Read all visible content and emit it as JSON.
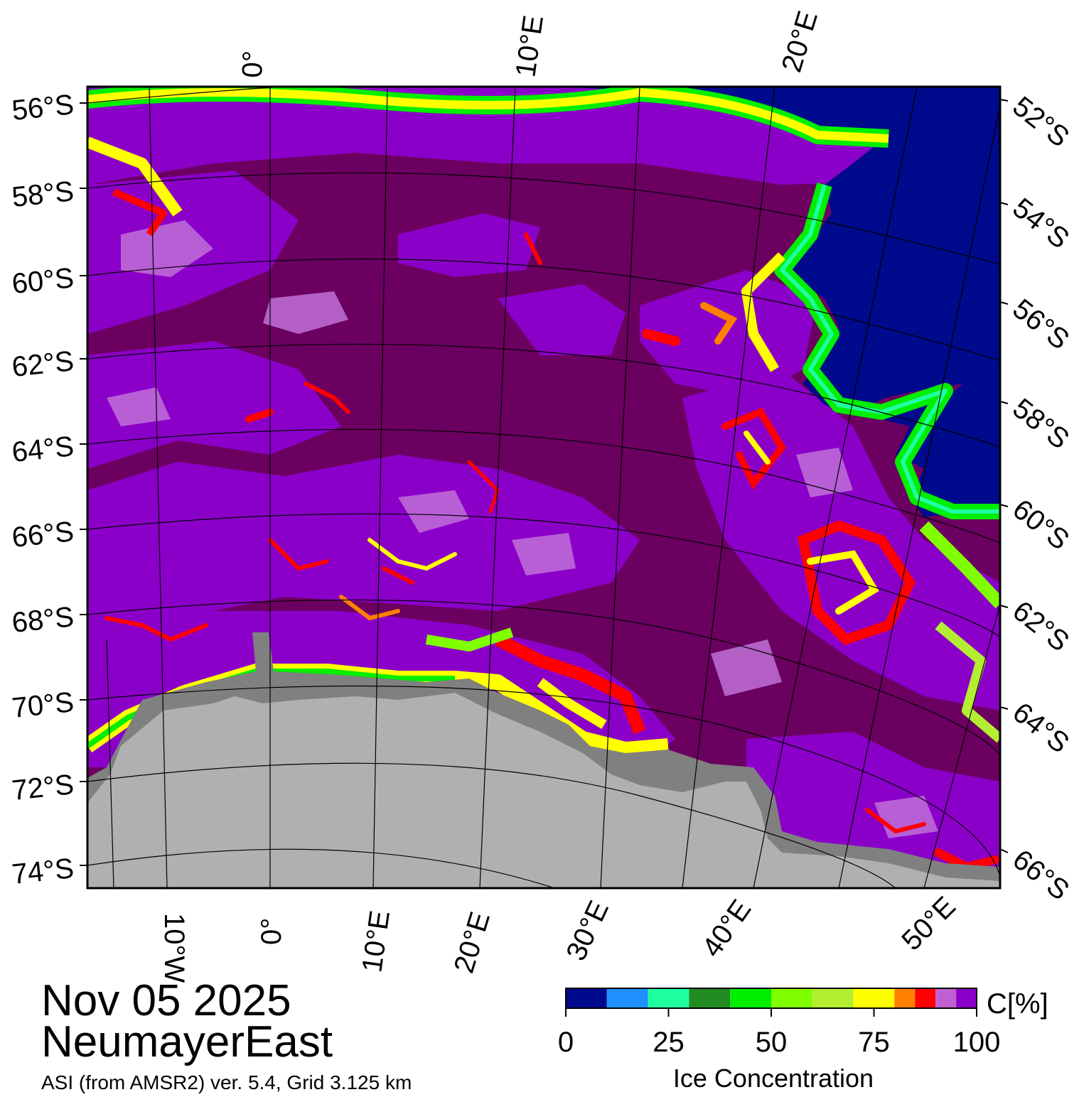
{
  "title": {
    "date": "Nov 05 2025",
    "region": "NeumayerEast",
    "credit": "ASI (from AMSR2) ver. 5.4,  Grid 3.125 km"
  },
  "map": {
    "lat_labels_left": [
      "56°S",
      "58°S",
      "60°S",
      "62°S",
      "64°S",
      "66°S",
      "68°S",
      "70°S",
      "72°S",
      "74°S"
    ],
    "lat_labels_right": [
      "52°S",
      "54°S",
      "56°S",
      "58°S",
      "60°S",
      "62°S",
      "64°S",
      "66°S"
    ],
    "lon_labels_top": [
      "0°",
      "10°E",
      "20°E"
    ],
    "lon_labels_bottom": [
      "10°W",
      "0°",
      "10°E",
      "20°E",
      "30°E",
      "40°E",
      "50°E"
    ],
    "colors": {
      "open_water": "#000a8c",
      "ice_100": "#6b0060",
      "ice_95": "#8b00c8",
      "ice_90": "#c070d8",
      "land": "#b0b0b0",
      "ice_shelf": "#808080"
    }
  },
  "colorbar": {
    "label": "Ice Concentration",
    "unit": "C[%]",
    "ticks": [
      "0",
      "25",
      "50",
      "75",
      "100"
    ],
    "bins": [
      {
        "from": 0,
        "to": 10,
        "color": "#000a8c"
      },
      {
        "from": 10,
        "to": 20,
        "color": "#1e90ff"
      },
      {
        "from": 20,
        "to": 30,
        "color": "#1effa0"
      },
      {
        "from": 30,
        "to": 40,
        "color": "#228b22"
      },
      {
        "from": 40,
        "to": 50,
        "color": "#00ee00"
      },
      {
        "from": 50,
        "to": 60,
        "color": "#7fff00"
      },
      {
        "from": 60,
        "to": 70,
        "color": "#b4ee32"
      },
      {
        "from": 70,
        "to": 80,
        "color": "#ffff00"
      },
      {
        "from": 80,
        "to": 85,
        "color": "#ff8000"
      },
      {
        "from": 85,
        "to": 90,
        "color": "#ff0000"
      },
      {
        "from": 90,
        "to": 95,
        "color": "#c060d0"
      },
      {
        "from": 95,
        "to": 100,
        "color": "#8b00c8"
      }
    ]
  }
}
